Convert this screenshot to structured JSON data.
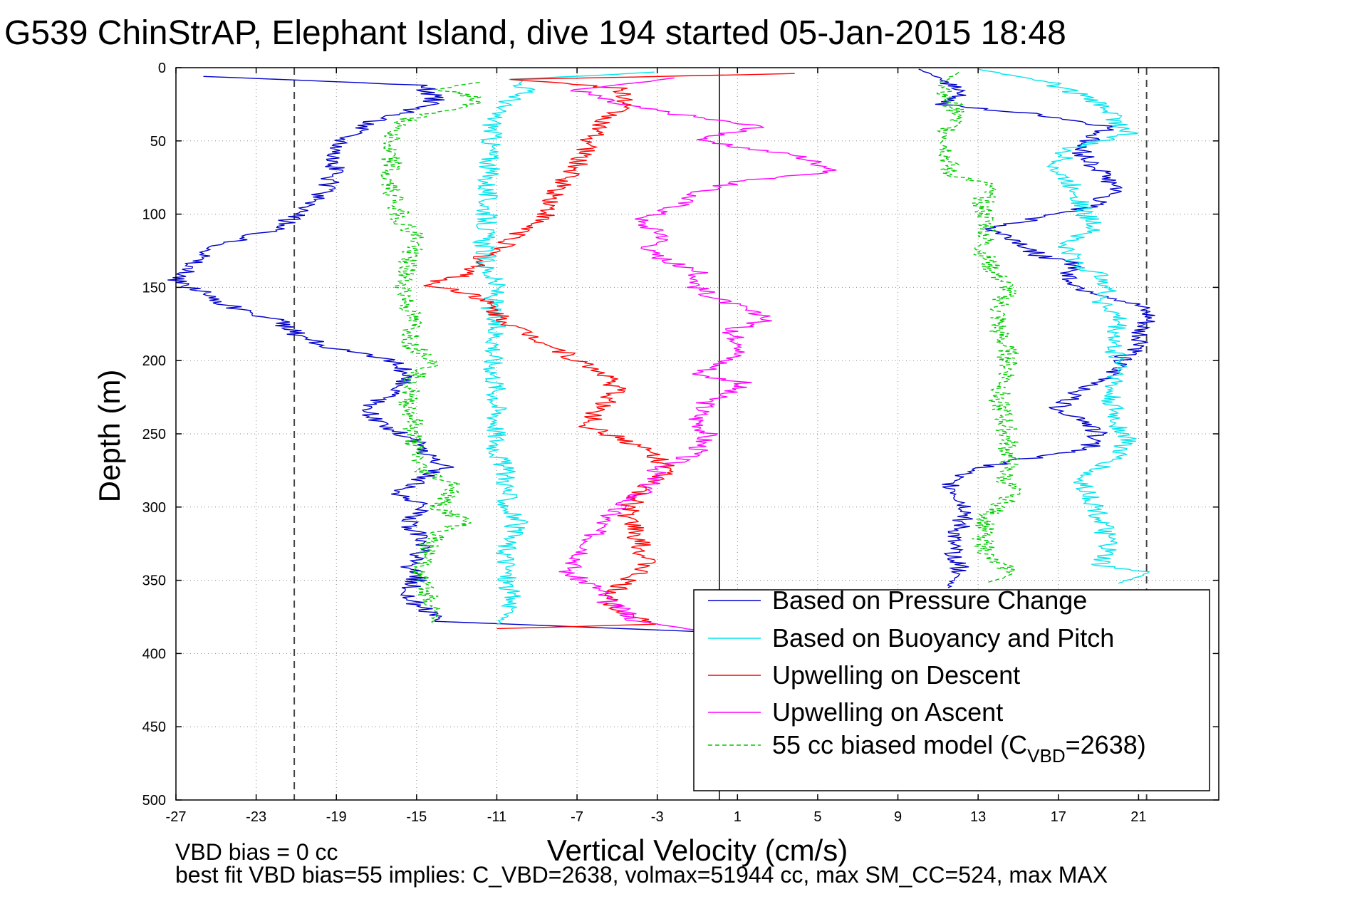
{
  "chart_data": {
    "type": "line",
    "title": "G539 ChinStrAP, Elephant Island, dive 194 started 05-Jan-2015 18:48",
    "xlabel": "Vertical Velocity (cm/s)",
    "ylabel": "Depth (m)",
    "xlim": [
      -27,
      25
    ],
    "ylim": [
      0,
      500
    ],
    "y_inverted": true,
    "xticks": [
      "-27",
      "-23",
      "-19",
      "-15",
      "-11",
      "-7",
      "-3",
      "1",
      "5",
      "9",
      "13",
      "17",
      "21"
    ],
    "yticks": [
      "0",
      "50",
      "100",
      "150",
      "200",
      "250",
      "300",
      "350",
      "400",
      "450",
      "500"
    ],
    "grid": true,
    "legend_position": "bottom-right",
    "reference_lines": {
      "dashed_x": [
        -21.1,
        21.4
      ],
      "solid_x": [
        0.1
      ]
    },
    "series": [
      {
        "name": "Based on Pressure Change",
        "color": "#0000cc",
        "style": "solid",
        "points": [
          [
            -25.5,
            6
          ],
          [
            -14.8,
            12
          ],
          [
            -14,
            22
          ],
          [
            -15,
            28
          ],
          [
            -17,
            36
          ],
          [
            -18.5,
            48
          ],
          [
            -19,
            60
          ],
          [
            -19.2,
            75
          ],
          [
            -20,
            90
          ],
          [
            -21,
            100
          ],
          [
            -22,
            110
          ],
          [
            -24.5,
            120
          ],
          [
            -26,
            132
          ],
          [
            -27,
            145
          ],
          [
            -25,
            158
          ],
          [
            -24,
            165
          ],
          [
            -22,
            172
          ],
          [
            -21,
            182
          ],
          [
            -19,
            192
          ],
          [
            -16,
            201
          ],
          [
            -15.5,
            210
          ],
          [
            -16,
            220
          ],
          [
            -17,
            228
          ],
          [
            -17.5,
            238
          ],
          [
            -16.5,
            245
          ],
          [
            -15,
            255
          ],
          [
            -14.5,
            265
          ],
          [
            -13.5,
            272
          ],
          [
            -15,
            282
          ],
          [
            -16,
            292
          ],
          [
            -14.5,
            300
          ],
          [
            -15.5,
            312
          ],
          [
            -14.5,
            325
          ],
          [
            -15.5,
            340
          ],
          [
            -15,
            350
          ],
          [
            -15.5,
            360
          ],
          [
            -14.5,
            372
          ],
          [
            -14,
            378
          ],
          [
            -1,
            385
          ]
        ]
      },
      {
        "name": "Based on Buoyancy and Pitch",
        "color": "#00e5ee",
        "style": "solid",
        "points": [
          [
            -3,
            3
          ],
          [
            -10,
            8
          ],
          [
            -9.5,
            15
          ],
          [
            -10,
            20
          ],
          [
            -11,
            28
          ],
          [
            -11.2,
            40
          ],
          [
            -11.3,
            55
          ],
          [
            -11.4,
            70
          ],
          [
            -11.5,
            85
          ],
          [
            -11.5,
            100
          ],
          [
            -11.6,
            115
          ],
          [
            -11.6,
            135
          ],
          [
            -11,
            150
          ],
          [
            -11.3,
            165
          ],
          [
            -11,
            185
          ],
          [
            -11.2,
            200
          ],
          [
            -11,
            220
          ],
          [
            -11,
            240
          ],
          [
            -11,
            260
          ],
          [
            -10.5,
            280
          ],
          [
            -10.5,
            300
          ],
          [
            -10,
            310
          ],
          [
            -10.5,
            325
          ],
          [
            -10.5,
            350
          ],
          [
            -10.2,
            370
          ],
          [
            -11,
            380
          ]
        ]
      },
      {
        "name": "Upwelling on Descent",
        "color": "#ff0000",
        "style": "solid",
        "points": [
          [
            4,
            4
          ],
          [
            -10,
            8
          ],
          [
            -5,
            14
          ],
          [
            -4.5,
            22
          ],
          [
            -5,
            30
          ],
          [
            -6,
            40
          ],
          [
            -6.5,
            55
          ],
          [
            -7.2,
            70
          ],
          [
            -8,
            85
          ],
          [
            -8.5,
            100
          ],
          [
            -9.5,
            110
          ],
          [
            -10.5,
            120
          ],
          [
            -11.8,
            130
          ],
          [
            -12.2,
            140
          ],
          [
            -14.5,
            148
          ],
          [
            -12,
            155
          ],
          [
            -11,
            168
          ],
          [
            -10,
            178
          ],
          [
            -8.5,
            188
          ],
          [
            -7,
            200
          ],
          [
            -5.5,
            210
          ],
          [
            -5,
            220
          ],
          [
            -6,
            235
          ],
          [
            -6.5,
            245
          ],
          [
            -4.5,
            255
          ],
          [
            -3,
            265
          ],
          [
            -2.5,
            275
          ],
          [
            -4,
            290
          ],
          [
            -4.5,
            305
          ],
          [
            -4,
            320
          ],
          [
            -3.5,
            340
          ],
          [
            -5,
            355
          ],
          [
            -5.5,
            365
          ],
          [
            -4,
            375
          ],
          [
            -3,
            380
          ],
          [
            -11,
            383
          ]
        ]
      },
      {
        "name": "Upwelling on Ascent",
        "color": "#ff00ff",
        "style": "solid",
        "points": [
          [
            -2,
            7
          ],
          [
            -7,
            15
          ],
          [
            -5,
            25
          ],
          [
            0,
            36
          ],
          [
            2,
            40
          ],
          [
            -1,
            50
          ],
          [
            4,
            60
          ],
          [
            6,
            70
          ],
          [
            1,
            78
          ],
          [
            -1,
            85
          ],
          [
            -2,
            95
          ],
          [
            -4,
            105
          ],
          [
            -2.5,
            115
          ],
          [
            -3.5,
            125
          ],
          [
            -2,
            135
          ],
          [
            -1,
            140
          ],
          [
            -1,
            150
          ],
          [
            0,
            158
          ],
          [
            1,
            163
          ],
          [
            2.5,
            172
          ],
          [
            0.5,
            180
          ],
          [
            1.5,
            190
          ],
          [
            0.5,
            200
          ],
          [
            -1,
            210
          ],
          [
            1.5,
            215
          ],
          [
            -0.5,
            228
          ],
          [
            -1,
            240
          ],
          [
            -0.5,
            250
          ],
          [
            -1,
            262
          ],
          [
            -3,
            275
          ],
          [
            -3.5,
            288
          ],
          [
            -5,
            300
          ],
          [
            -6,
            315
          ],
          [
            -6.5,
            330
          ],
          [
            -7.5,
            345
          ],
          [
            -6,
            355
          ],
          [
            -5.5,
            365
          ],
          [
            -4.5,
            372
          ],
          [
            -4,
            378
          ],
          [
            -1,
            384
          ]
        ]
      },
      {
        "name": "55 cc biased model (C_VBD=2638)",
        "color": "#00cc00",
        "style": "dashed",
        "points": [
          [
            -12,
            10
          ],
          [
            -14,
            15
          ],
          [
            -12,
            20
          ],
          [
            -12.5,
            27
          ],
          [
            -15.5,
            35
          ],
          [
            -16,
            45
          ],
          [
            -16.5,
            55
          ],
          [
            -16.2,
            65
          ],
          [
            -16.6,
            75
          ],
          [
            -16,
            90
          ],
          [
            -15.8,
            105
          ],
          [
            -15,
            115
          ],
          [
            -15.3,
            130
          ],
          [
            -15.7,
            145
          ],
          [
            -15.5,
            160
          ],
          [
            -15.2,
            175
          ],
          [
            -15.3,
            190
          ],
          [
            -14,
            200
          ],
          [
            -15,
            210
          ],
          [
            -15.5,
            225
          ],
          [
            -15.2,
            240
          ],
          [
            -15.2,
            255
          ],
          [
            -14.8,
            275
          ],
          [
            -13,
            285
          ],
          [
            -14,
            300
          ],
          [
            -12.5,
            310
          ],
          [
            -14,
            318
          ],
          [
            -14.5,
            330
          ],
          [
            -14.8,
            350
          ],
          [
            -14,
            370
          ],
          [
            -14.2,
            380
          ]
        ]
      }
    ],
    "ascent_series": [
      {
        "name": "Based on Pressure Change",
        "color": "#0000cc",
        "points": [
          [
            10,
            1
          ],
          [
            11.5,
            10
          ],
          [
            12.5,
            18
          ],
          [
            11,
            25
          ],
          [
            13,
            28
          ],
          [
            16,
            32
          ],
          [
            19.5,
            40
          ],
          [
            18,
            55
          ],
          [
            19,
            70
          ],
          [
            20,
            82
          ],
          [
            18.5,
            95
          ],
          [
            17,
            100
          ],
          [
            13.5,
            110
          ],
          [
            15,
            118
          ],
          [
            16,
            128
          ],
          [
            18,
            135
          ],
          [
            17.5,
            142
          ],
          [
            18,
            150
          ],
          [
            20,
            158
          ],
          [
            21,
            163
          ],
          [
            21.5,
            170
          ],
          [
            21,
            180
          ],
          [
            21.2,
            190
          ],
          [
            20,
            200
          ],
          [
            19.5,
            212
          ],
          [
            18,
            222
          ],
          [
            17,
            232
          ],
          [
            18.5,
            242
          ],
          [
            19,
            250
          ],
          [
            18.5,
            260
          ],
          [
            15,
            268
          ],
          [
            12.5,
            275
          ],
          [
            11.5,
            282
          ],
          [
            12,
            292
          ],
          [
            12.5,
            303
          ],
          [
            12,
            315
          ],
          [
            11.5,
            325
          ],
          [
            12,
            335
          ],
          [
            12,
            345
          ],
          [
            11.5,
            355
          ]
        ]
      },
      {
        "name": "Based on Buoyancy and Pitch",
        "color": "#00e5ee",
        "points": [
          [
            13,
            1
          ],
          [
            16.5,
            10
          ],
          [
            18,
            18
          ],
          [
            19.5,
            28
          ],
          [
            20,
            38
          ],
          [
            20.5,
            45
          ],
          [
            17.5,
            55
          ],
          [
            16.8,
            70
          ],
          [
            18,
            85
          ],
          [
            18.3,
            100
          ],
          [
            19,
            110
          ],
          [
            17.2,
            120
          ],
          [
            18,
            135
          ],
          [
            19.5,
            145
          ],
          [
            19.2,
            160
          ],
          [
            20,
            172
          ],
          [
            19.7,
            190
          ],
          [
            20.2,
            205
          ],
          [
            19.5,
            220
          ],
          [
            19.8,
            240
          ],
          [
            20.5,
            255
          ],
          [
            19.5,
            270
          ],
          [
            18,
            280
          ],
          [
            18.5,
            290
          ],
          [
            19,
            305
          ],
          [
            19.5,
            325
          ],
          [
            19,
            340
          ],
          [
            21.5,
            345
          ],
          [
            20,
            352
          ]
        ]
      },
      {
        "name": "55 cc biased model (C_VBD=2638)",
        "color": "#00cc00",
        "points": [
          [
            12,
            3
          ],
          [
            11,
            12
          ],
          [
            11.5,
            22
          ],
          [
            12,
            30
          ],
          [
            11.5,
            45
          ],
          [
            11.5,
            60
          ],
          [
            11.5,
            72
          ],
          [
            13.5,
            80
          ],
          [
            13.2,
            95
          ],
          [
            13.5,
            110
          ],
          [
            13.2,
            125
          ],
          [
            13.8,
            140
          ],
          [
            14.5,
            150
          ],
          [
            14,
            165
          ],
          [
            14,
            180
          ],
          [
            14.5,
            195
          ],
          [
            14.5,
            210
          ],
          [
            14,
            225
          ],
          [
            14.3,
            240
          ],
          [
            14.5,
            255
          ],
          [
            14.5,
            270
          ],
          [
            14.3,
            280
          ],
          [
            14.8,
            292
          ],
          [
            13.5,
            305
          ],
          [
            13.2,
            320
          ],
          [
            13.5,
            335
          ],
          [
            14.8,
            345
          ],
          [
            13.5,
            352
          ]
        ]
      }
    ]
  },
  "footer": {
    "line1": "VBD bias = 0 cc",
    "line2": "best fit VBD bias=55 implies: C_VBD=2638, volmax=51944 cc, max SM_CC=524, max MAX"
  },
  "legend": {
    "items": [
      {
        "label": "Based on Pressure Change",
        "color": "#0000cc",
        "style": "solid"
      },
      {
        "label": "Based on Buoyancy and Pitch",
        "color": "#00e5ee",
        "style": "solid"
      },
      {
        "label": "Upwelling on Descent",
        "color": "#ff0000",
        "style": "solid"
      },
      {
        "label": "Upwelling on Ascent",
        "color": "#ff00ff",
        "style": "solid"
      },
      {
        "label": "55 cc biased model (C",
        "sub": "VBD",
        "suffix": "=2638)",
        "color": "#00cc00",
        "style": "dashed"
      }
    ]
  }
}
